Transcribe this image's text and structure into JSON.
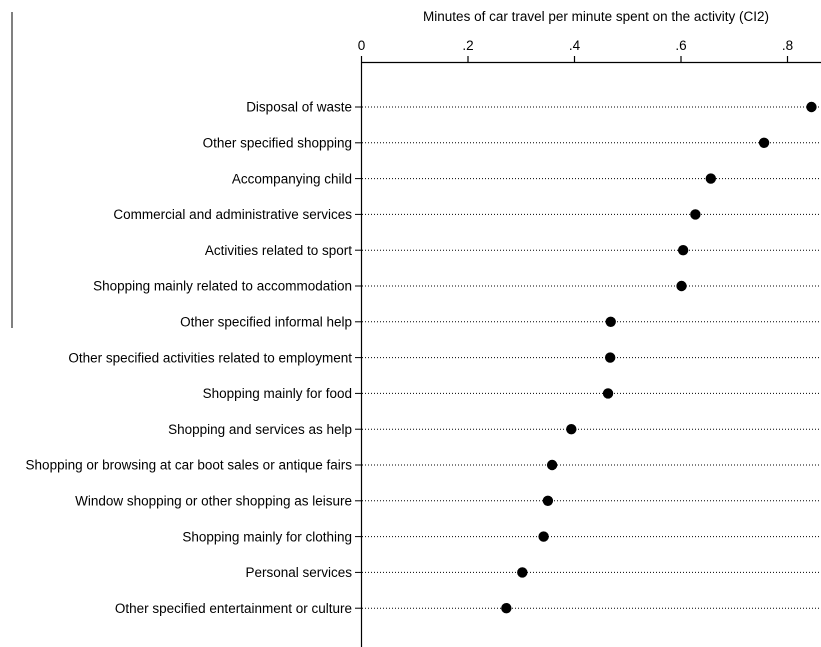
{
  "chart_data": {
    "type": "scatter",
    "subtype": "dot",
    "title": "",
    "xlabel": "Minutes of car travel per minute spent on the activity (CI2)",
    "ylabel": "",
    "xlim": [
      0,
      0.865
    ],
    "x_ticks": [
      {
        "value": 0,
        "label": "0"
      },
      {
        "value": 0.2,
        "label": ".2"
      },
      {
        "value": 0.4,
        "label": ".4"
      },
      {
        "value": 0.6,
        "label": ".6"
      },
      {
        "value": 0.8,
        "label": ".8"
      }
    ],
    "x_axis_position": "top",
    "grid": "dotted horizontal guide lines",
    "legend": "none",
    "marker_color": "#000000",
    "categories": [
      "Disposal of waste",
      "Other specified shopping",
      "Accompanying child",
      "Commercial and administrative services",
      "Activities related to sport",
      "Shopping mainly related to accommodation",
      "Other specified informal help",
      "Other specified activities related to employment",
      "Shopping mainly for food",
      "Shopping and services as help",
      "Shopping or browsing at car boot sales or antique fairs",
      "Window shopping or other shopping as leisure",
      "Shopping mainly for clothing",
      "Personal services",
      "Other specified entertainment or culture"
    ],
    "values": [
      0.845,
      0.756,
      0.656,
      0.627,
      0.604,
      0.601,
      0.468,
      0.467,
      0.463,
      0.394,
      0.358,
      0.35,
      0.342,
      0.302,
      0.272
    ]
  }
}
